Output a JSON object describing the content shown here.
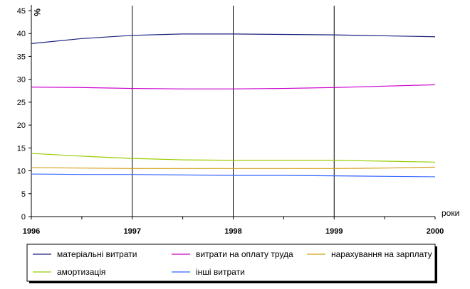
{
  "chart_data": {
    "type": "line",
    "xlabel": "роки",
    "ylabel": "%",
    "x": [
      1996,
      1996.5,
      1997,
      1997.5,
      1998,
      1998.5,
      1999,
      1999.5,
      2000
    ],
    "xlim": [
      1996,
      2000
    ],
    "ylim": [
      0,
      45
    ],
    "x_ticks": [
      "1996",
      "1997",
      "1998",
      "1999",
      "2000"
    ],
    "y_ticks": [
      "0",
      "5",
      "10",
      "15",
      "20",
      "25",
      "30",
      "35",
      "40",
      "45"
    ],
    "grid": "vertical",
    "legend_position": "bottom",
    "series": [
      {
        "name": "матеріальні витрати",
        "color": "#1a237e",
        "values": [
          37.8,
          38.9,
          39.6,
          39.9,
          39.9,
          39.8,
          39.7,
          39.5,
          39.3
        ]
      },
      {
        "name": "витрати на оплату труда",
        "color": "#cc00cc",
        "values": [
          28.3,
          28.2,
          28.0,
          27.9,
          27.9,
          28.0,
          28.2,
          28.5,
          28.8
        ]
      },
      {
        "name": "нарахування на зарплату",
        "color": "#d4a017",
        "values": [
          10.7,
          10.6,
          10.5,
          10.5,
          10.5,
          10.5,
          10.5,
          10.6,
          10.8
        ]
      },
      {
        "name": "амортизація",
        "color": "#99cc00",
        "values": [
          13.8,
          13.2,
          12.7,
          12.4,
          12.3,
          12.3,
          12.3,
          12.1,
          11.9
        ]
      },
      {
        "name": "інші витрати",
        "color": "#3366ff",
        "values": [
          9.3,
          9.2,
          9.2,
          9.1,
          9.0,
          9.0,
          8.9,
          8.8,
          8.7
        ]
      }
    ]
  }
}
